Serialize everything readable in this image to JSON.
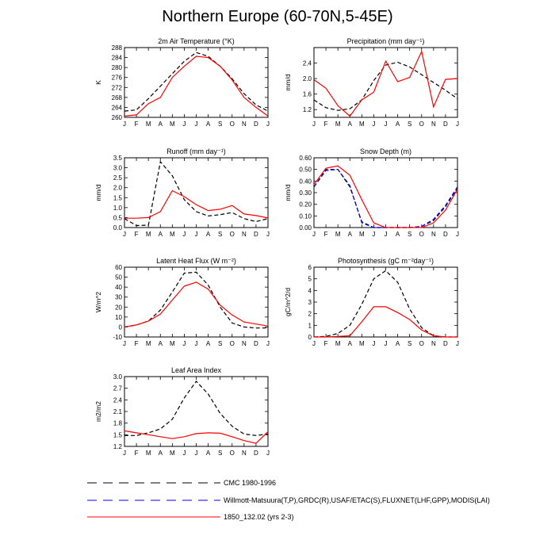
{
  "title": "Northern Europe (60-70N,5-45E)",
  "months": [
    "J",
    "F",
    "M",
    "A",
    "M",
    "J",
    "J",
    "A",
    "S",
    "O",
    "N",
    "D",
    "J"
  ],
  "colors": {
    "cmc": "#000000",
    "obs": "#0000ff",
    "model": "#ff0000"
  },
  "legend": [
    {
      "label": "CMC 1980-1996",
      "color": "#000000",
      "dash": "dashed"
    },
    {
      "label": "Willmott-Matsuura(T,P),GRDC(R),USAF/ETAC(S),FLUXNET(LHF,GPP),MODIS(LAI)",
      "color": "#0000ff",
      "dash": "dashed"
    },
    {
      "label": "1850_132.02 (yrs 2-3)",
      "color": "#ff0000",
      "dash": "solid"
    }
  ],
  "chart_data": [
    {
      "type": "line",
      "title": "2m Air Temperature (°K)",
      "ylabel": "K",
      "ylim": [
        260,
        288
      ],
      "yticks": [
        260,
        264,
        268,
        272,
        276,
        280,
        284,
        288
      ],
      "series": [
        {
          "name": "CMC 1980-1996",
          "style": "dashed",
          "color": "#000000",
          "values": [
            262.5,
            263.0,
            267.5,
            272.5,
            277.5,
            282.5,
            286.0,
            284.5,
            280.5,
            275.5,
            269.5,
            265.0,
            262.5
          ]
        },
        {
          "name": "1850_132.02 (yrs 2-3)",
          "style": "solid",
          "color": "#ff0000",
          "values": [
            260.5,
            261.0,
            265.5,
            268.0,
            276.0,
            280.5,
            284.5,
            284.0,
            280.5,
            275.0,
            268.0,
            264.0,
            260.5
          ]
        }
      ]
    },
    {
      "type": "line",
      "title": "Precipitation (mm day⁻¹)",
      "ylabel": "mm/d",
      "ylim": [
        1.0,
        2.8
      ],
      "yticks": [
        1.2,
        1.6,
        2.0,
        2.4
      ],
      "series": [
        {
          "name": "CMC 1980-1996",
          "style": "dashed",
          "color": "#000000",
          "values": [
            1.45,
            1.25,
            1.18,
            1.22,
            1.45,
            1.95,
            2.35,
            2.42,
            2.3,
            2.1,
            1.9,
            1.7,
            1.48
          ]
        },
        {
          "name": "1850_132.02 (yrs 2-3)",
          "style": "solid",
          "color": "#ff0000",
          "values": [
            1.97,
            1.75,
            1.3,
            1.03,
            1.45,
            1.65,
            2.45,
            1.92,
            2.03,
            2.7,
            1.27,
            1.98,
            2.0
          ]
        }
      ]
    },
    {
      "type": "line",
      "title": "Runoff (mm day⁻¹)",
      "ylabel": "mm/d",
      "ylim": [
        0,
        3.5
      ],
      "yticks": [
        0.0,
        0.5,
        1.0,
        1.5,
        2.0,
        2.5,
        3.0,
        3.5
      ],
      "series": [
        {
          "name": "CMC 1980-1996",
          "style": "dashed",
          "color": "#000000",
          "values": [
            0.45,
            0.1,
            0.12,
            3.3,
            2.6,
            1.4,
            0.8,
            0.58,
            0.65,
            0.75,
            0.45,
            0.3,
            0.45
          ]
        },
        {
          "name": "1850_132.02 (yrs 2-3)",
          "style": "solid",
          "color": "#ff0000",
          "values": [
            0.47,
            0.47,
            0.5,
            0.8,
            1.85,
            1.55,
            1.15,
            0.85,
            0.92,
            1.1,
            0.68,
            0.6,
            0.48
          ]
        }
      ]
    },
    {
      "type": "line",
      "title": "Snow Depth (m)",
      "ylabel": "mm/d",
      "ylim": [
        0,
        0.6
      ],
      "yticks": [
        0.0,
        0.1,
        0.2,
        0.3,
        0.4,
        0.5,
        0.6
      ],
      "series": [
        {
          "name": "CMC 1980-1996",
          "style": "dashed",
          "color": "#000000",
          "values": [
            0.35,
            0.5,
            0.5,
            0.35,
            0.05,
            0.0,
            0.0,
            0.0,
            0.0,
            0.01,
            0.06,
            0.18,
            0.34
          ]
        },
        {
          "name": "Willmott-Matsuura(T,P),GRDC(R),USAF/ETAC(S),FLUXNET(LHF,GPP),MODIS(LAI)",
          "style": "dashed",
          "color": "#0000ff",
          "values": [
            0.35,
            0.49,
            0.5,
            0.36,
            0.04,
            0.0,
            0.0,
            0.0,
            0.0,
            0.01,
            0.07,
            0.19,
            0.35
          ]
        },
        {
          "name": "1850_132.02 (yrs 2-3)",
          "style": "solid",
          "color": "#ff0000",
          "values": [
            0.37,
            0.51,
            0.53,
            0.45,
            0.24,
            0.04,
            0.0,
            0.0,
            0.0,
            0.0,
            0.04,
            0.15,
            0.33
          ]
        }
      ]
    },
    {
      "type": "line",
      "title": "Latent Heat Flux (W m⁻²)",
      "ylabel": "W/m^2",
      "ylim": [
        -10,
        60
      ],
      "yticks": [
        -10,
        0,
        10,
        20,
        30,
        40,
        50,
        60
      ],
      "series": [
        {
          "name": "CMC 1980-1996",
          "style": "dashed",
          "color": "#000000",
          "values": [
            0,
            2,
            6,
            17,
            35,
            54,
            55,
            42,
            20,
            4,
            0,
            -1,
            -1
          ]
        },
        {
          "name": "1850_132.02 (yrs 2-3)",
          "style": "solid",
          "color": "#ff0000",
          "values": [
            0,
            2,
            6,
            13,
            27,
            41,
            45,
            38,
            22,
            12,
            5,
            3,
            1
          ]
        }
      ]
    },
    {
      "type": "line",
      "title": "Photosynthesis (gC m⁻²day⁻¹)",
      "ylabel": "gC/m^2/d",
      "ylim": [
        0,
        6.0
      ],
      "yticks": [
        0.0,
        1.0,
        2.0,
        3.0,
        4.0,
        5.0,
        6.0
      ],
      "series": [
        {
          "name": "CMC 1980-1996",
          "style": "dashed",
          "color": "#000000",
          "values": [
            0.0,
            0.05,
            0.3,
            1.0,
            2.8,
            5.0,
            5.7,
            4.7,
            2.4,
            0.8,
            0.1,
            0.0,
            0.0
          ]
        },
        {
          "name": "1850_132.02 (yrs 2-3)",
          "style": "solid",
          "color": "#ff0000",
          "values": [
            0.0,
            0.0,
            0.05,
            0.1,
            1.3,
            2.6,
            2.6,
            2.1,
            1.5,
            0.6,
            0.1,
            0.0,
            0.0
          ]
        }
      ]
    },
    {
      "type": "line",
      "title": "Leaf Area Index",
      "ylabel": "m2/m2",
      "ylim": [
        1.2,
        3.0
      ],
      "yticks": [
        1.2,
        1.5,
        1.8,
        2.1,
        2.4,
        2.7,
        3.0
      ],
      "series": [
        {
          "name": "CMC 1980-1996",
          "style": "dashed",
          "color": "#000000",
          "values": [
            1.48,
            1.48,
            1.55,
            1.65,
            1.9,
            2.45,
            2.88,
            2.55,
            2.05,
            1.72,
            1.52,
            1.48,
            1.52
          ]
        },
        {
          "name": "1850_132.02 (yrs 2-3)",
          "style": "solid",
          "color": "#ff0000",
          "values": [
            1.6,
            1.55,
            1.5,
            1.45,
            1.4,
            1.45,
            1.53,
            1.55,
            1.54,
            1.45,
            1.35,
            1.28,
            1.58
          ]
        }
      ]
    }
  ]
}
